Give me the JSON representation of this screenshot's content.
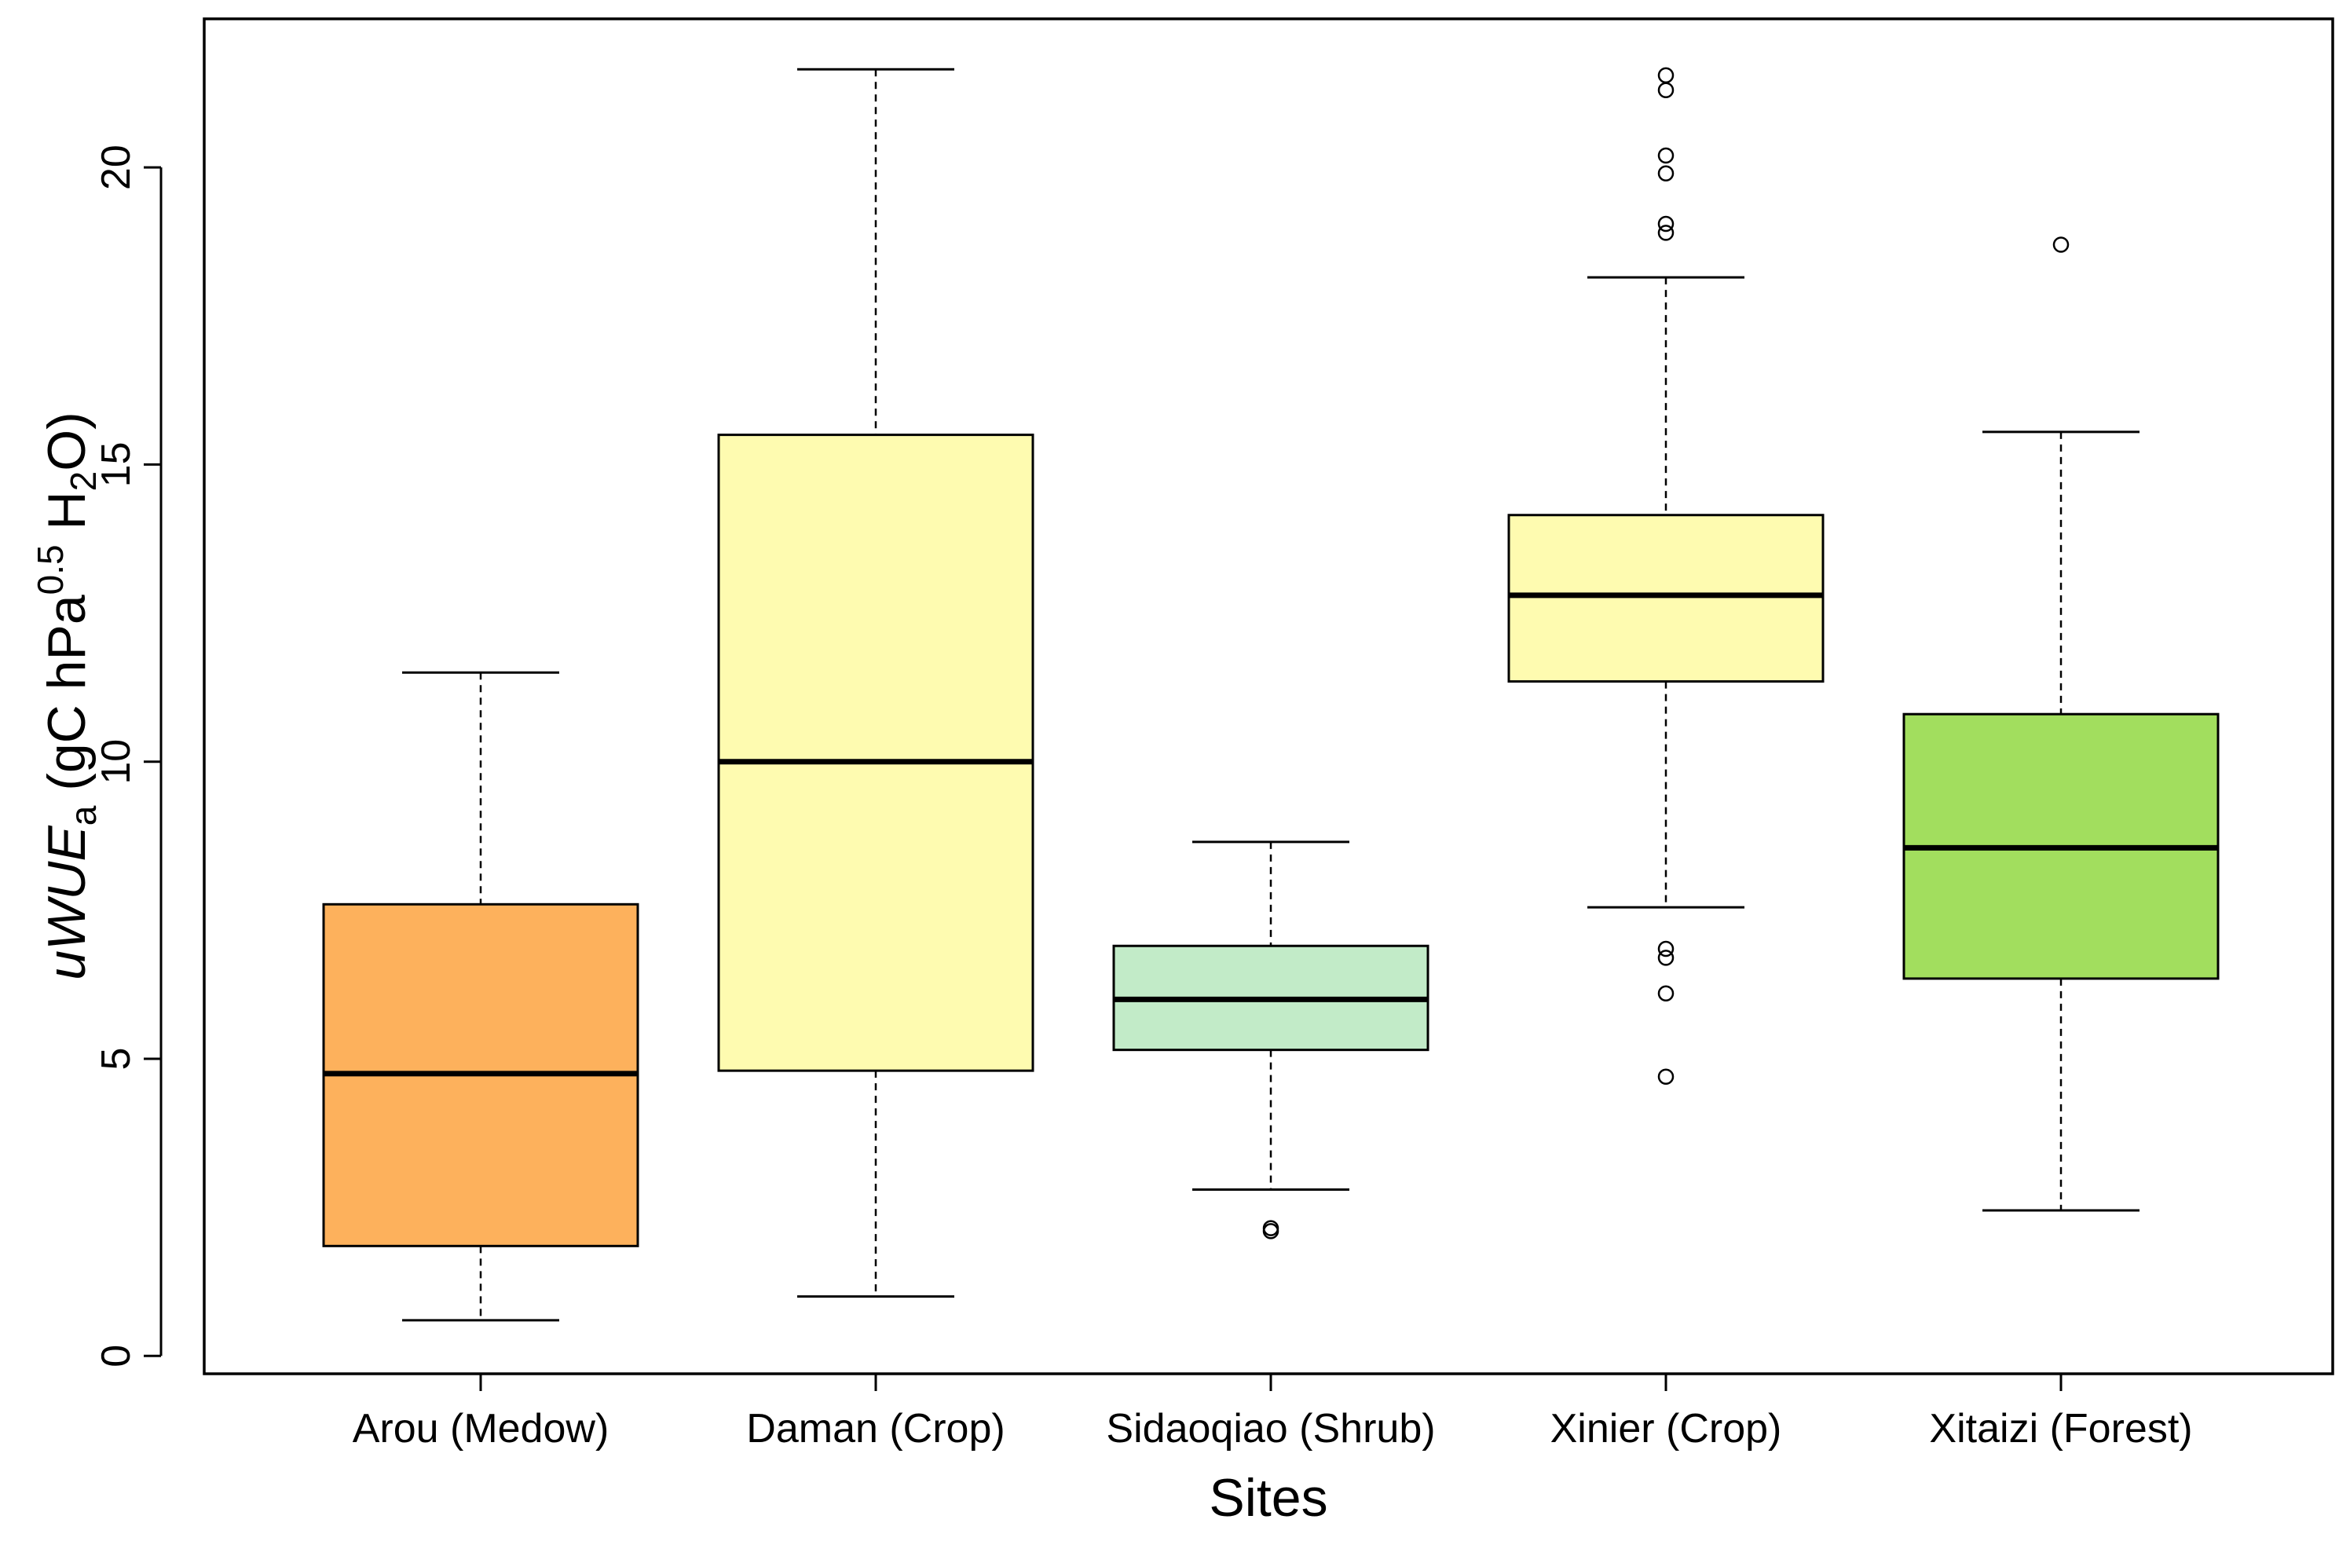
{
  "chart_data": {
    "type": "boxplot",
    "title": "",
    "xlabel": "Sites",
    "ylabel": {
      "italic": "uWUE",
      "italic_subscript": "a",
      "prefix": " (gC hPa",
      "superscript": "0.5",
      "middle": " H",
      "subscript": "2",
      "suffix": "O)"
    },
    "ylim": [
      -0.3,
      22.5
    ],
    "yticks": [
      0,
      5,
      10,
      15,
      20
    ],
    "ytick_labels": [
      "0",
      "5",
      "10",
      "15",
      "20"
    ],
    "categories": [
      "Arou (Medow)",
      "Daman (Crop)",
      "Sidaoqiao (Shrub)",
      "Xinier (Crop)",
      "Xitaizi (Forest)"
    ],
    "boxes": [
      {
        "label": "Arou (Medow)",
        "whisker_low": 0.6,
        "q1": 1.85,
        "median": 4.75,
        "q3": 7.6,
        "whisker_high": 11.5,
        "outliers": [],
        "color": "#FDB15C"
      },
      {
        "label": "Daman (Crop)",
        "whisker_low": 1.0,
        "q1": 4.8,
        "median": 10.0,
        "q3": 15.5,
        "whisker_high": 21.65,
        "outliers": [],
        "color": "#FEFBB0"
      },
      {
        "label": "Sidaoqiao (Shrub)",
        "whisker_low": 2.8,
        "q1": 5.15,
        "median": 6.0,
        "q3": 6.9,
        "whisker_high": 8.65,
        "outliers": [
          2.1,
          2.15
        ],
        "color": "#C2EBC8"
      },
      {
        "label": "Xinier (Crop)",
        "whisker_low": 7.55,
        "q1": 11.35,
        "median": 12.8,
        "q3": 14.15,
        "whisker_high": 18.15,
        "outliers": [
          4.7,
          6.1,
          6.7,
          6.85,
          18.9,
          19.05,
          19.9,
          20.2,
          21.3,
          21.55
        ],
        "color": "#FEFBB0"
      },
      {
        "label": "Xitaizi (Forest)",
        "whisker_low": 2.45,
        "q1": 6.35,
        "median": 8.55,
        "q3": 10.8,
        "whisker_high": 15.55,
        "outliers": [
          18.7
        ],
        "color": "#A2DE5E"
      }
    ]
  }
}
